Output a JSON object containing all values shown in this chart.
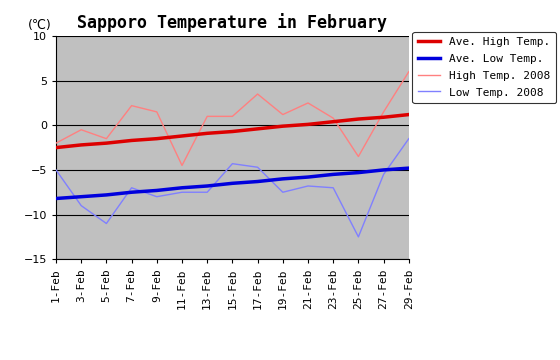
{
  "title": "Sapporo Temperature in February",
  "ylabel": "(℃)",
  "ylim": [
    -15,
    10
  ],
  "yticks": [
    -15,
    -10,
    -5,
    0,
    5,
    10
  ],
  "plot_bg": "#c0c0c0",
  "fig_bg": "#ffffff",
  "outer_bg": "#ffffff",
  "x_labels": [
    "1-Feb",
    "3-Feb",
    "5-Feb",
    "7-Feb",
    "9-Feb",
    "11-Feb",
    "13-Feb",
    "15-Feb",
    "17-Feb",
    "19-Feb",
    "21-Feb",
    "23-Feb",
    "25-Feb",
    "27-Feb",
    "29-Feb"
  ],
  "days": [
    1,
    3,
    5,
    7,
    9,
    11,
    13,
    15,
    17,
    19,
    21,
    23,
    25,
    27,
    29
  ],
  "ave_high": [
    -2.5,
    -2.2,
    -2.0,
    -1.7,
    -1.5,
    -1.2,
    -0.9,
    -0.7,
    -0.4,
    -0.1,
    0.1,
    0.4,
    0.7,
    0.9,
    1.2
  ],
  "ave_low": [
    -8.2,
    -8.0,
    -7.8,
    -7.5,
    -7.3,
    -7.0,
    -6.8,
    -6.5,
    -6.3,
    -6.0,
    -5.8,
    -5.5,
    -5.3,
    -5.0,
    -4.8
  ],
  "high_2008": [
    -2.0,
    -0.5,
    -1.5,
    2.2,
    1.5,
    -4.5,
    1.0,
    1.0,
    3.5,
    1.2,
    2.5,
    0.8,
    -3.5,
    1.5,
    6.0
  ],
  "low_2008": [
    -5.0,
    -9.0,
    -11.0,
    -7.0,
    -8.0,
    -7.5,
    -7.5,
    -4.3,
    -4.7,
    -7.5,
    -6.8,
    -7.0,
    -12.5,
    -5.5,
    -1.5
  ],
  "ave_high_color": "#dd0000",
  "ave_low_color": "#0000dd",
  "high_2008_color": "#ff8080",
  "low_2008_color": "#8080ff",
  "grid_color": "#000000",
  "legend_labels": [
    "Ave. High Temp.",
    "Ave. Low Temp.",
    "High Temp. 2008",
    "Low Temp. 2008"
  ],
  "title_fontsize": 12,
  "tick_fontsize": 8,
  "legend_fontsize": 8
}
